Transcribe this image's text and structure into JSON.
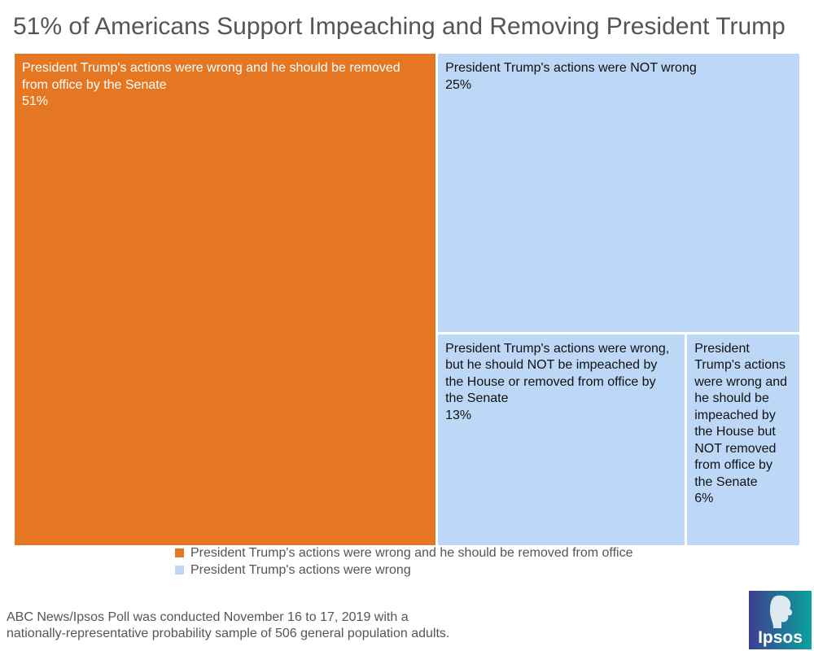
{
  "title": "51% of Americans Support Impeaching and Removing President Trump",
  "chart_data": {
    "type": "treemap",
    "title": "51% of Americans Support Impeaching and Removing President Trump",
    "unit": "%",
    "groups": [
      {
        "name": "President Trump's actions were wrong and he should be removed from office",
        "color": "#E67722"
      },
      {
        "name": "President Trump's actions were wrong",
        "color": "#BDD7F7"
      }
    ],
    "items": [
      {
        "label": "President Trump's actions were wrong and he should be removed from office by the Senate",
        "value": 51,
        "value_label": "51%",
        "group": 0,
        "text_color": "#FFFFFF"
      },
      {
        "label": "President Trump's actions were NOT wrong",
        "value": 25,
        "value_label": "25%",
        "group": 1,
        "text_color": "#111111"
      },
      {
        "label": "President Trump's actions were wrong, but he should NOT be impeached by the House or removed from office by the Senate",
        "value": 13,
        "value_label": "13%",
        "group": 1,
        "text_color": "#111111"
      },
      {
        "label": "President Trump's actions were wrong and he should be impeached by the House but NOT removed from office by the Senate",
        "value": 6,
        "value_label": "6%",
        "group": 1,
        "text_color": "#111111"
      }
    ],
    "legend_position": "bottom-center"
  },
  "legend": [
    {
      "label": "President Trump's actions were wrong and he should be removed from office",
      "color": "#E67722"
    },
    {
      "label": "President Trump's actions were wrong",
      "color": "#BDD7F7"
    }
  ],
  "footnote": [
    "ABC News/Ipsos Poll was conducted November 16 to 17, 2019  with a",
    "nationally-representative probability sample of 506 general population adults."
  ],
  "logo": {
    "text": "Ipsos",
    "colors": [
      "#3D3D8F",
      "#0AA39E"
    ]
  }
}
